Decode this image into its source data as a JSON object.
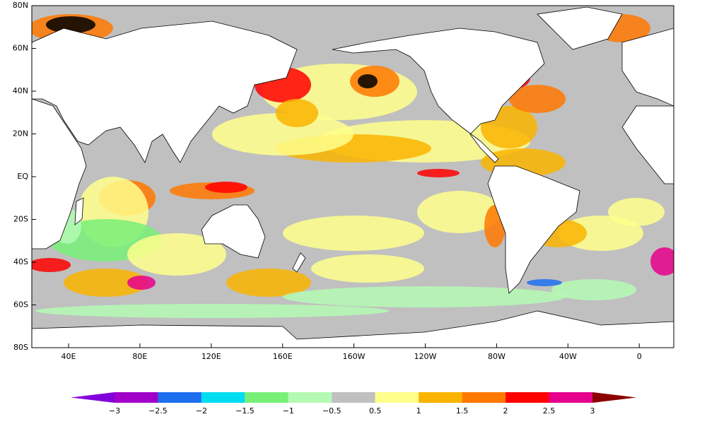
{
  "map": {
    "lat_labels": [
      "80N",
      "60N",
      "40N",
      "20N",
      "EQ",
      "20S",
      "40S",
      "60S",
      "80S"
    ],
    "lon_labels": [
      "40E",
      "80E",
      "120E",
      "160E",
      "160W",
      "120W",
      "80W",
      "40W",
      "0"
    ],
    "ocean_color": "#c0c0c0"
  },
  "colorbar": {
    "labels": [
      "−3",
      "−2.5",
      "−2",
      "−1.5",
      "−1",
      "−0.5",
      "0.5",
      "1",
      "1.5",
      "2",
      "2.5",
      "3"
    ],
    "below_color": "#8200dc",
    "colors": [
      "#a000c8",
      "#1e6ef0",
      "#00dcf0",
      "#78f078",
      "#b4fab4",
      "#c0c0c0",
      "#ffff8c",
      "#fab400",
      "#ff7800",
      "#ff0000",
      "#e6008c"
    ],
    "above_color": "#8c0000"
  }
}
